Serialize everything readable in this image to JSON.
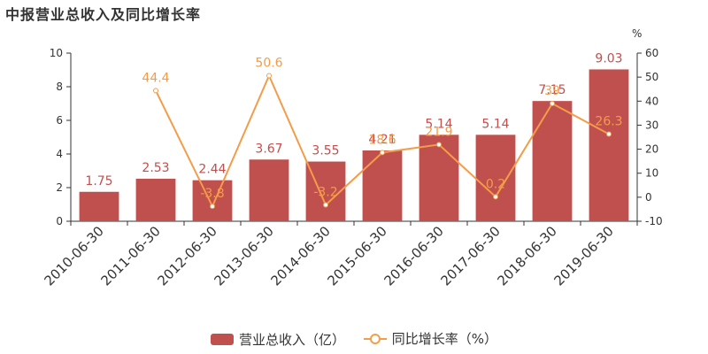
{
  "title": "中报营业总收入及同比增长率",
  "colors": {
    "bar": "#c0504d",
    "line": "#f39c4a",
    "axis": "#333333",
    "text": "#333333"
  },
  "legend": {
    "bar_label": "营业总收入（亿）",
    "line_label": "同比增长率（%）"
  },
  "chart_data": {
    "type": "bar",
    "title": "中报营业总收入及同比增长率",
    "categories": [
      "2010-06-30",
      "2011-06-30",
      "2012-06-30",
      "2013-06-30",
      "2014-06-30",
      "2015-06-30",
      "2016-06-30",
      "2017-06-30",
      "2018-06-30",
      "2019-06-30"
    ],
    "series": [
      {
        "name": "营业总收入（亿）",
        "type": "bar",
        "axis": "left",
        "values": [
          1.75,
          2.53,
          2.44,
          3.67,
          3.55,
          4.21,
          5.14,
          5.14,
          7.15,
          9.03
        ]
      },
      {
        "name": "同比增长率（%）",
        "type": "line",
        "axis": "right",
        "values": [
          null,
          44.4,
          -3.8,
          50.6,
          -3.2,
          18.6,
          21.9,
          0.2,
          39.0,
          26.3
        ]
      }
    ],
    "left_axis": {
      "ylim": [
        0,
        10
      ],
      "ticks": [
        0,
        2,
        4,
        6,
        8,
        10
      ]
    },
    "right_axis": {
      "unit": "%",
      "ylim": [
        -10,
        60
      ],
      "ticks": [
        -10,
        0,
        10,
        20,
        30,
        40,
        50,
        60
      ]
    },
    "legend_position": "bottom-center",
    "grid": false
  }
}
